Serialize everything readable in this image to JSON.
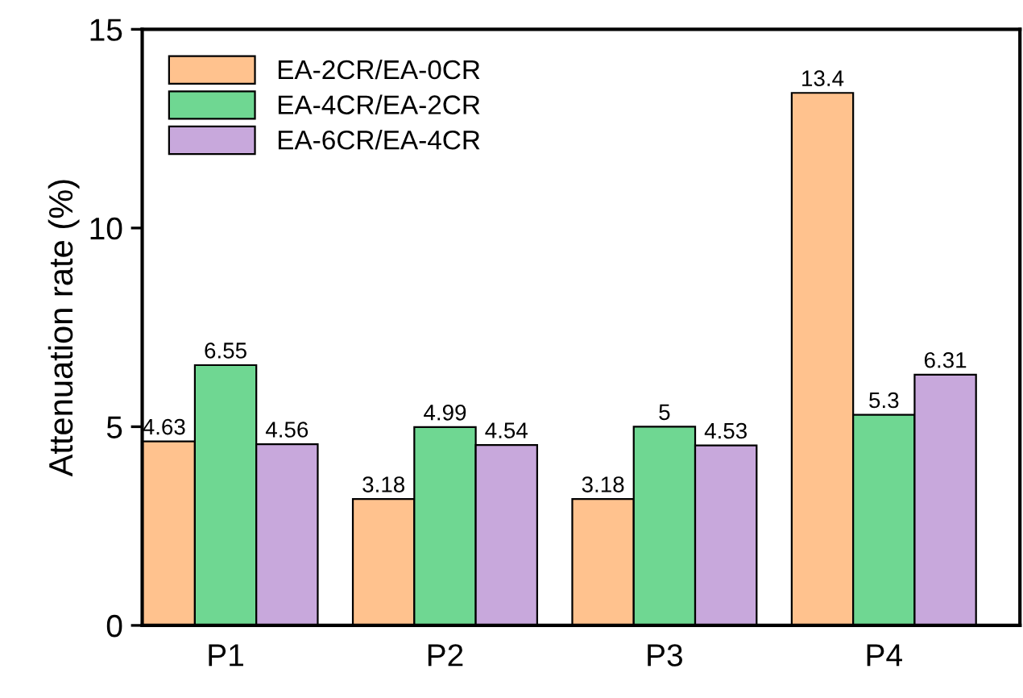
{
  "chart_data": {
    "type": "bar",
    "ylabel": "Attenuation rate (%)",
    "categories": [
      "P1",
      "P2",
      "P3",
      "P4"
    ],
    "series": [
      {
        "name": "EA-2CR/EA-0CR",
        "color": "#ffc28e",
        "values": [
          4.63,
          3.18,
          3.18,
          13.4
        ]
      },
      {
        "name": "EA-4CR/EA-2CR",
        "color": "#6fd792",
        "values": [
          6.55,
          4.99,
          5,
          5.3
        ]
      },
      {
        "name": "EA-6CR/EA-4CR",
        "color": "#c8a8dc",
        "values": [
          4.56,
          4.54,
          4.53,
          6.31
        ]
      }
    ],
    "ylim": [
      0,
      15
    ],
    "yticks": [
      0,
      5,
      10,
      15
    ],
    "data_labels": true,
    "legend": "top left",
    "grid": false
  }
}
